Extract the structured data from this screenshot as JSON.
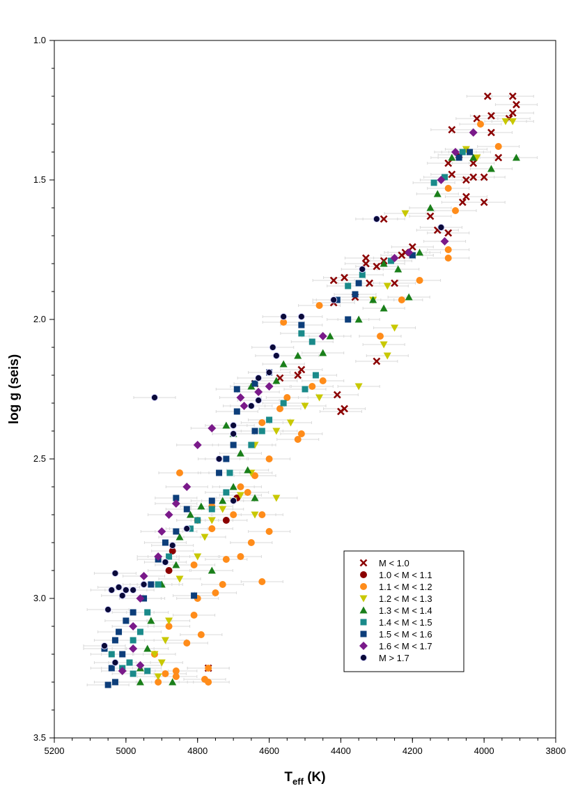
{
  "chart_data": {
    "type": "scatter",
    "title": "",
    "xlabel": {
      "main": "T",
      "sub": "eff",
      "unit": " (K)"
    },
    "ylabel": "log g (seis)",
    "xlim": [
      5200,
      3800
    ],
    "ylim": [
      3.5,
      1.0
    ],
    "x_reversed": true,
    "y_reversed": true,
    "x_ticks": [
      "5200",
      "5000",
      "4800",
      "4600",
      "4400",
      "4200",
      "4000",
      "3800"
    ],
    "y_ticks": [
      "1.0",
      "1.5",
      "2.0",
      "2.5",
      "3.0",
      "3.5"
    ],
    "grid": false,
    "legend_position": "lower-right",
    "error_bars": "horizontal, light grey",
    "series": [
      {
        "name": "M < 1.0",
        "marker": "x",
        "color": "#8b0000",
        "points": [
          [
            3990,
            1.2
          ],
          [
            3920,
            1.2
          ],
          [
            3910,
            1.23
          ],
          [
            3920,
            1.26
          ],
          [
            3930,
            1.28
          ],
          [
            3980,
            1.27
          ],
          [
            4020,
            1.28
          ],
          [
            4090,
            1.32
          ],
          [
            3980,
            1.33
          ],
          [
            4070,
            1.41
          ],
          [
            3960,
            1.42
          ],
          [
            4030,
            1.44
          ],
          [
            4100,
            1.44
          ],
          [
            4090,
            1.48
          ],
          [
            4050,
            1.5
          ],
          [
            4030,
            1.49
          ],
          [
            4000,
            1.49
          ],
          [
            4050,
            1.56
          ],
          [
            4060,
            1.58
          ],
          [
            4000,
            1.58
          ],
          [
            4150,
            1.63
          ],
          [
            4100,
            1.69
          ],
          [
            4130,
            1.68
          ],
          [
            4280,
            1.64
          ],
          [
            4200,
            1.74
          ],
          [
            4220,
            1.76
          ],
          [
            4230,
            1.77
          ],
          [
            4330,
            1.78
          ],
          [
            4330,
            1.8
          ],
          [
            4280,
            1.79
          ],
          [
            4390,
            1.85
          ],
          [
            4420,
            1.86
          ],
          [
            4320,
            1.87
          ],
          [
            4250,
            1.87
          ],
          [
            4300,
            1.81
          ],
          [
            4360,
            1.92
          ],
          [
            4420,
            1.94
          ],
          [
            4300,
            2.15
          ],
          [
            4510,
            2.18
          ],
          [
            4520,
            2.2
          ],
          [
            4570,
            2.21
          ],
          [
            4640,
            2.23
          ],
          [
            4410,
            2.27
          ],
          [
            4400,
            2.33
          ],
          [
            4390,
            2.32
          ],
          [
            4770,
            3.25
          ]
        ]
      },
      {
        "name": "1.0 < M < 1.1",
        "marker": "circle",
        "color": "#8b0000",
        "points": [
          [
            4870,
            2.83
          ],
          [
            4880,
            2.9
          ],
          [
            4690,
            2.64
          ],
          [
            4720,
            2.72
          ]
        ]
      },
      {
        "name": "1.1 < M < 1.2",
        "marker": "circle",
        "color": "#ff8c1a",
        "points": [
          [
            4010,
            1.3
          ],
          [
            3960,
            1.38
          ],
          [
            4100,
            1.53
          ],
          [
            4080,
            1.61
          ],
          [
            4100,
            1.75
          ],
          [
            4100,
            1.78
          ],
          [
            4180,
            1.86
          ],
          [
            4230,
            1.93
          ],
          [
            4460,
            1.95
          ],
          [
            4560,
            2.01
          ],
          [
            4290,
            2.06
          ],
          [
            4450,
            2.22
          ],
          [
            4480,
            2.24
          ],
          [
            4550,
            2.28
          ],
          [
            4570,
            2.32
          ],
          [
            4620,
            2.37
          ],
          [
            4510,
            2.41
          ],
          [
            4520,
            2.43
          ],
          [
            4600,
            2.5
          ],
          [
            4640,
            2.56
          ],
          [
            4850,
            2.55
          ],
          [
            4700,
            2.65
          ],
          [
            4620,
            2.7
          ],
          [
            4600,
            2.76
          ],
          [
            4650,
            2.8
          ],
          [
            4720,
            2.86
          ],
          [
            4810,
            2.88
          ],
          [
            4620,
            2.94
          ],
          [
            4730,
            2.95
          ],
          [
            4750,
            2.98
          ],
          [
            4800,
            3.0
          ],
          [
            4810,
            3.06
          ],
          [
            4880,
            3.1
          ],
          [
            4790,
            3.13
          ],
          [
            4830,
            3.16
          ],
          [
            4920,
            3.2
          ],
          [
            4770,
            3.25
          ],
          [
            4860,
            3.26
          ],
          [
            4860,
            3.28
          ],
          [
            4780,
            3.29
          ],
          [
            4910,
            3.3
          ],
          [
            4770,
            3.3
          ],
          [
            4890,
            3.27
          ],
          [
            4660,
            2.62
          ],
          [
            4680,
            2.6
          ],
          [
            4700,
            2.7
          ],
          [
            4760,
            2.75
          ],
          [
            4800,
            2.72
          ],
          [
            4760,
            2.67
          ],
          [
            4680,
            2.85
          ]
        ]
      },
      {
        "name": "1.2 < M < 1.3",
        "marker": "triangle-down",
        "color": "#c8c800",
        "points": [
          [
            3940,
            1.29
          ],
          [
            3920,
            1.29
          ],
          [
            4020,
            1.42
          ],
          [
            4050,
            1.39
          ],
          [
            4220,
            1.62
          ],
          [
            4270,
            1.88
          ],
          [
            4310,
            1.93
          ],
          [
            4250,
            2.03
          ],
          [
            4280,
            2.09
          ],
          [
            4270,
            2.13
          ],
          [
            4350,
            2.24
          ],
          [
            4460,
            2.28
          ],
          [
            4500,
            2.31
          ],
          [
            4540,
            2.37
          ],
          [
            4580,
            2.4
          ],
          [
            4640,
            2.45
          ],
          [
            4650,
            2.55
          ],
          [
            4680,
            2.63
          ],
          [
            4700,
            2.65
          ],
          [
            4730,
            2.68
          ],
          [
            4760,
            2.72
          ],
          [
            4780,
            2.78
          ],
          [
            4800,
            2.85
          ],
          [
            4850,
            2.93
          ],
          [
            4880,
            3.08
          ],
          [
            4890,
            3.15
          ],
          [
            4920,
            3.2
          ],
          [
            4900,
            3.23
          ],
          [
            4910,
            3.28
          ],
          [
            4580,
            2.64
          ],
          [
            4640,
            2.7
          ]
        ]
      },
      {
        "name": "1.3 < M < 1.4",
        "marker": "triangle-up",
        "color": "#1a7f1a",
        "points": [
          [
            3910,
            1.42
          ],
          [
            3980,
            1.46
          ],
          [
            4030,
            1.42
          ],
          [
            4090,
            1.42
          ],
          [
            4130,
            1.55
          ],
          [
            4150,
            1.6
          ],
          [
            4180,
            1.76
          ],
          [
            4240,
            1.82
          ],
          [
            4210,
            1.92
          ],
          [
            4280,
            1.8
          ],
          [
            4280,
            1.96
          ],
          [
            4310,
            1.93
          ],
          [
            4350,
            2.0
          ],
          [
            4430,
            2.06
          ],
          [
            4450,
            2.12
          ],
          [
            4520,
            2.13
          ],
          [
            4560,
            2.16
          ],
          [
            4580,
            2.22
          ],
          [
            4650,
            2.24
          ],
          [
            4700,
            2.41
          ],
          [
            4720,
            2.38
          ],
          [
            4680,
            2.48
          ],
          [
            4660,
            2.54
          ],
          [
            4700,
            2.6
          ],
          [
            4730,
            2.65
          ],
          [
            4790,
            2.67
          ],
          [
            4820,
            2.7
          ],
          [
            4850,
            2.78
          ],
          [
            4860,
            2.88
          ],
          [
            4900,
            2.95
          ],
          [
            4930,
            3.08
          ],
          [
            4940,
            3.18
          ],
          [
            4960,
            3.25
          ],
          [
            4960,
            3.3
          ],
          [
            4870,
            3.3
          ],
          [
            4760,
            2.9
          ],
          [
            4640,
            2.64
          ]
        ]
      },
      {
        "name": "1.4 < M < 1.5",
        "marker": "square",
        "color": "#1a8a8a",
        "points": [
          [
            4060,
            1.4
          ],
          [
            4110,
            1.49
          ],
          [
            4140,
            1.51
          ],
          [
            4200,
            1.77
          ],
          [
            4260,
            1.79
          ],
          [
            4340,
            1.84
          ],
          [
            4380,
            1.88
          ],
          [
            4510,
            2.05
          ],
          [
            4480,
            2.08
          ],
          [
            4470,
            2.2
          ],
          [
            4500,
            2.25
          ],
          [
            4560,
            2.3
          ],
          [
            4600,
            2.36
          ],
          [
            4620,
            2.4
          ],
          [
            4650,
            2.45
          ],
          [
            4710,
            2.55
          ],
          [
            4720,
            2.62
          ],
          [
            4760,
            2.68
          ],
          [
            4800,
            2.72
          ],
          [
            4820,
            2.75
          ],
          [
            4880,
            2.85
          ],
          [
            4910,
            2.95
          ],
          [
            4940,
            3.05
          ],
          [
            4960,
            3.12
          ],
          [
            4980,
            3.15
          ],
          [
            4990,
            3.23
          ],
          [
            5010,
            3.25
          ],
          [
            5040,
            3.2
          ],
          [
            4980,
            3.27
          ],
          [
            4940,
            3.26
          ]
        ]
      },
      {
        "name": "1.5 < M < 1.6",
        "marker": "square",
        "color": "#0d3e7a",
        "points": [
          [
            4040,
            1.4
          ],
          [
            4070,
            1.42
          ],
          [
            4200,
            1.77
          ],
          [
            4350,
            1.87
          ],
          [
            4360,
            1.91
          ],
          [
            4410,
            1.93
          ],
          [
            4380,
            2.0
          ],
          [
            4510,
            2.02
          ],
          [
            4600,
            2.19
          ],
          [
            4640,
            2.23
          ],
          [
            4690,
            2.25
          ],
          [
            4690,
            2.33
          ],
          [
            4640,
            2.4
          ],
          [
            4700,
            2.45
          ],
          [
            4720,
            2.5
          ],
          [
            4740,
            2.55
          ],
          [
            4830,
            2.68
          ],
          [
            4860,
            2.64
          ],
          [
            4860,
            2.76
          ],
          [
            4890,
            2.8
          ],
          [
            4910,
            2.86
          ],
          [
            4930,
            2.95
          ],
          [
            4950,
            3.0
          ],
          [
            4980,
            3.05
          ],
          [
            5000,
            3.08
          ],
          [
            5020,
            3.12
          ],
          [
            5030,
            3.15
          ],
          [
            5060,
            3.18
          ],
          [
            5010,
            3.2
          ],
          [
            5040,
            3.25
          ],
          [
            5030,
            3.3
          ],
          [
            5050,
            3.31
          ],
          [
            4810,
            2.99
          ],
          [
            4760,
            2.65
          ]
        ]
      },
      {
        "name": "1.6 < M < 1.7",
        "marker": "diamond",
        "color": "#7a1a8a",
        "points": [
          [
            4030,
            1.33
          ],
          [
            4080,
            1.4
          ],
          [
            4120,
            1.5
          ],
          [
            4110,
            1.72
          ],
          [
            4210,
            1.76
          ],
          [
            4250,
            1.78
          ],
          [
            4450,
            2.06
          ],
          [
            4600,
            2.24
          ],
          [
            4630,
            2.26
          ],
          [
            4670,
            2.31
          ],
          [
            4680,
            2.28
          ],
          [
            4760,
            2.39
          ],
          [
            4800,
            2.45
          ],
          [
            4830,
            2.6
          ],
          [
            4860,
            2.66
          ],
          [
            4880,
            2.7
          ],
          [
            4900,
            2.76
          ],
          [
            4910,
            2.85
          ],
          [
            4950,
            2.92
          ],
          [
            4960,
            3.0
          ],
          [
            4980,
            3.1
          ],
          [
            4980,
            3.18
          ],
          [
            4960,
            3.24
          ],
          [
            5010,
            3.26
          ]
        ]
      },
      {
        "name": "M > 1.7",
        "marker": "circle-dark",
        "color": "#0a0a3a",
        "points": [
          [
            4300,
            1.64
          ],
          [
            4120,
            1.67
          ],
          [
            4340,
            1.82
          ],
          [
            4420,
            1.93
          ],
          [
            4560,
            1.99
          ],
          [
            4510,
            1.99
          ],
          [
            4590,
            2.1
          ],
          [
            4580,
            2.13
          ],
          [
            4600,
            2.19
          ],
          [
            4630,
            2.21
          ],
          [
            4630,
            2.29
          ],
          [
            4650,
            2.31
          ],
          [
            4920,
            2.28
          ],
          [
            4700,
            2.38
          ],
          [
            4700,
            2.41
          ],
          [
            4740,
            2.5
          ],
          [
            4700,
            2.65
          ],
          [
            4830,
            2.75
          ],
          [
            4870,
            2.81
          ],
          [
            4890,
            2.87
          ],
          [
            4950,
            2.95
          ],
          [
            4980,
            2.97
          ],
          [
            5000,
            2.97
          ],
          [
            5020,
            2.96
          ],
          [
            5010,
            2.99
          ],
          [
            5040,
            2.97
          ],
          [
            5030,
            2.91
          ],
          [
            5050,
            3.04
          ],
          [
            5060,
            3.17
          ],
          [
            5030,
            3.23
          ]
        ]
      }
    ]
  }
}
